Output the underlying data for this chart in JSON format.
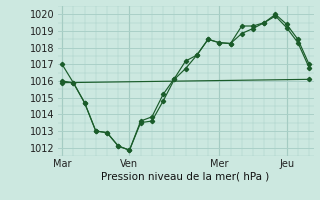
{
  "xlabel": "Pression niveau de la mer( hPa )",
  "bg_color": "#cce8e0",
  "grid_color": "#aad0c8",
  "line_color": "#1a5c2a",
  "ylim": [
    1011.5,
    1020.5
  ],
  "yticks": [
    1012,
    1013,
    1014,
    1015,
    1016,
    1017,
    1018,
    1019,
    1020
  ],
  "day_labels": [
    "Mar",
    "Ven",
    "Mer",
    "Jeu"
  ],
  "day_positions": [
    0,
    3,
    7,
    10
  ],
  "xlim": [
    -0.2,
    11.2
  ],
  "series1_x": [
    0,
    0.5,
    1.0,
    1.5,
    2.0,
    2.5,
    3.0,
    3.5,
    4.0,
    4.5,
    5.0,
    5.5,
    6.0,
    6.5,
    7.0,
    7.5,
    8.0,
    8.5,
    9.0,
    9.5,
    10.0,
    10.5,
    11.0
  ],
  "series1_y": [
    1017.0,
    1015.9,
    1014.7,
    1013.0,
    1012.9,
    1012.1,
    1011.85,
    1013.6,
    1013.85,
    1015.2,
    1016.15,
    1017.2,
    1017.55,
    1018.5,
    1018.3,
    1018.25,
    1019.3,
    1019.3,
    1019.5,
    1020.0,
    1019.4,
    1018.5,
    1017.0
  ],
  "series2_x": [
    0,
    0.5,
    1.0,
    1.5,
    2.0,
    2.5,
    3.0,
    3.5,
    4.0,
    4.5,
    5.0,
    5.5,
    6.0,
    6.5,
    7.0,
    7.5,
    8.0,
    8.5,
    9.0,
    9.5,
    10.0,
    10.5,
    11.0
  ],
  "series2_y": [
    1016.0,
    1015.9,
    1014.7,
    1013.0,
    1012.9,
    1012.1,
    1011.85,
    1013.5,
    1013.6,
    1014.8,
    1016.1,
    1016.75,
    1017.55,
    1018.5,
    1018.3,
    1018.25,
    1018.85,
    1019.15,
    1019.5,
    1019.9,
    1019.2,
    1018.3,
    1016.8
  ],
  "series3_x": [
    0,
    11.0
  ],
  "series3_y": [
    1015.9,
    1016.1
  ]
}
